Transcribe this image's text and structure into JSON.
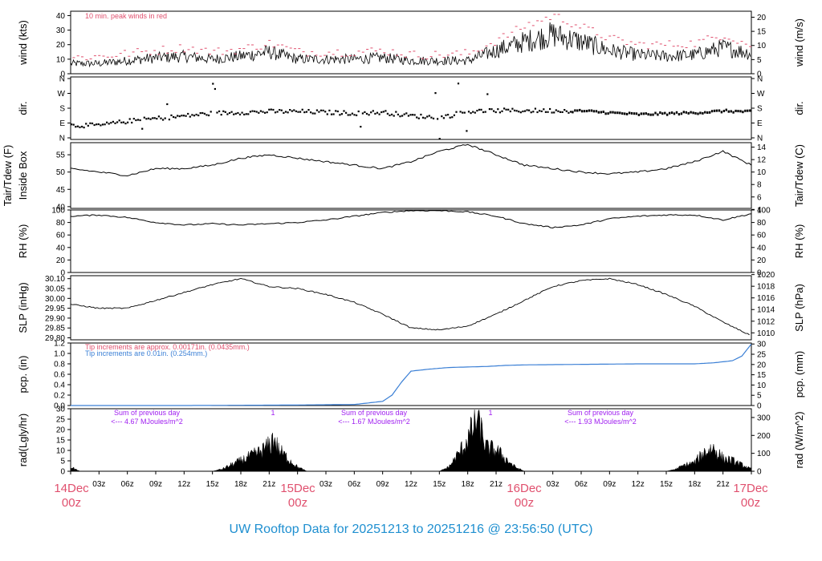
{
  "footer": "UW Rooftop Data for 20251213  to  20251216 @ 23:56:50  (UTC)",
  "colors": {
    "peak": "#e0506e",
    "blue": "#3a7fd5",
    "purple": "#a020f0",
    "date": "#e0506e",
    "footer": "#1e8fd0"
  },
  "time_axis": {
    "hour_ticks": [
      "03z",
      "06z",
      "09z",
      "12z",
      "15z",
      "18z",
      "21z"
    ],
    "day_labels": [
      {
        "day": "14Dec",
        "hour": "00z"
      },
      {
        "day": "15Dec",
        "hour": "00z"
      },
      {
        "day": "16Dec",
        "hour": "00z"
      },
      {
        "day": "17Dec",
        "hour": "00z"
      }
    ]
  },
  "panels": {
    "wind": {
      "left_label": "wind (kts)",
      "right_label": "wind (m/s)",
      "left_ticks": [
        "0",
        "10",
        "20",
        "30",
        "40"
      ],
      "right_ticks": [
        "0",
        "5",
        "10",
        "15",
        "20"
      ],
      "note": "10 min. peak winds in red"
    },
    "dir": {
      "left_label": "dir.",
      "right_label": "dir.",
      "left_ticks": [
        "N",
        "E",
        "S",
        "W",
        "N"
      ],
      "right_ticks": [
        "N",
        "E",
        "S",
        "W",
        "N"
      ]
    },
    "temp": {
      "left_label_1": "Tair/Tdew (F)",
      "left_label_2": "Inside Box",
      "right_label": "Tair/Tdew (C)",
      "left_ticks": [
        "40",
        "45",
        "50",
        "55"
      ],
      "right_ticks": [
        "4",
        "6",
        "8",
        "10",
        "12",
        "14"
      ]
    },
    "rh": {
      "left_label": "RH (%)",
      "right_label": "RH (%)",
      "left_ticks": [
        "0",
        "20",
        "40",
        "60",
        "80",
        "100"
      ],
      "right_ticks": [
        "0",
        "20",
        "40",
        "60",
        "80",
        "100"
      ]
    },
    "slp": {
      "left_label": "SLP (inHg)",
      "right_label": "SLP (hPa)",
      "left_ticks": [
        "29.80",
        "29.85",
        "29.90",
        "29.95",
        "30.00",
        "30.05",
        "30.10"
      ],
      "right_ticks": [
        "1010",
        "1012",
        "1014",
        "1016",
        "1018",
        "1020"
      ]
    },
    "pcp": {
      "left_label": "pcp. (in)",
      "right_label": "pcp. (mm)",
      "left_ticks": [
        "0.0",
        "0.2",
        "0.4",
        "0.6",
        "0.8",
        "1.0",
        "1.2"
      ],
      "right_ticks": [
        "0",
        "5",
        "10",
        "15",
        "20",
        "25",
        "30"
      ],
      "note1": "Tip increments are approx. 0.00171in. (0.0435mm.)",
      "note2": "Tip increments are 0.01in. (0.254mm.)"
    },
    "rad": {
      "left_label": "rad(Lgly/hr)",
      "right_label": "rad (W/m^2)",
      "left_ticks": [
        "0",
        "5",
        "10",
        "15",
        "20",
        "25",
        "30"
      ],
      "right_ticks": [
        "0",
        "100",
        "200",
        "300"
      ],
      "sums": [
        {
          "line1": "Sum of previous day",
          "line2": "<--- 4.67 MJoules/m^2"
        },
        {
          "line1": "Sum of previous day",
          "line2": "<--- 1.67 MJoules/m^2"
        },
        {
          "line1": "Sum of previous day",
          "line2": "<--- 1.93 MJoules/m^2"
        }
      ],
      "peak_marker": "1"
    }
  },
  "chart_data": [
    {
      "type": "line",
      "name": "wind",
      "x_unit": "hours since 14Dec 00z",
      "ylim": [
        0,
        42
      ],
      "series": [
        {
          "name": "wind speed",
          "x": [
            0,
            3,
            6,
            9,
            12,
            15,
            18,
            21,
            24,
            27,
            30,
            33,
            36,
            39,
            42,
            45,
            48,
            51,
            54,
            57,
            60,
            63,
            66,
            69,
            72
          ],
          "y": [
            7,
            7,
            9,
            11,
            12,
            10,
            12,
            15,
            10,
            10,
            10,
            11,
            9,
            9,
            9,
            16,
            22,
            27,
            22,
            16,
            13,
            12,
            13,
            18,
            14
          ]
        },
        {
          "name": "10 min. peak winds in red",
          "x": [
            0,
            3,
            6,
            9,
            12,
            15,
            18,
            21,
            24,
            27,
            30,
            33,
            36,
            39,
            42,
            45,
            48,
            51,
            54,
            57,
            60,
            63,
            66,
            69,
            72
          ],
          "y": [
            11,
            12,
            14,
            16,
            18,
            15,
            17,
            21,
            15,
            15,
            15,
            16,
            13,
            13,
            14,
            23,
            33,
            40,
            32,
            24,
            20,
            20,
            21,
            27,
            19
          ]
        }
      ]
    },
    {
      "type": "scatter",
      "name": "wind direction",
      "ylim": [
        "N",
        "E",
        "S",
        "W",
        "N"
      ],
      "series": [
        {
          "name": "direction (deg)",
          "x": [
            0,
            3,
            6,
            9,
            12,
            15,
            18,
            21,
            24,
            27,
            30,
            33,
            36,
            39,
            42,
            45,
            48,
            51,
            54,
            57,
            60,
            63,
            66,
            69,
            72
          ],
          "y": [
            95,
            95,
            120,
            135,
            150,
            165,
            170,
            175,
            175,
            170,
            165,
            170,
            150,
            140,
            175,
            180,
            180,
            180,
            180,
            170,
            160,
            165,
            170,
            180,
            175
          ]
        }
      ]
    },
    {
      "type": "line",
      "name": "Tair/Tdew Inside Box",
      "ylim": [
        40,
        58
      ],
      "series": [
        {
          "name": "Tair (F)",
          "x": [
            0,
            3,
            6,
            9,
            12,
            15,
            18,
            21,
            24,
            27,
            30,
            33,
            36,
            39,
            42,
            45,
            48,
            51,
            54,
            57,
            60,
            63,
            66,
            69,
            72
          ],
          "y": [
            51,
            50,
            49,
            51,
            51,
            52,
            54,
            55,
            54,
            53,
            52,
            51,
            53,
            56,
            58,
            55,
            52,
            51,
            50,
            49.5,
            50,
            51,
            53,
            56,
            52
          ]
        }
      ]
    },
    {
      "type": "line",
      "name": "RH",
      "ylim": [
        0,
        100
      ],
      "series": [
        {
          "name": "RH (%)",
          "x": [
            0,
            3,
            6,
            9,
            12,
            15,
            18,
            21,
            24,
            27,
            30,
            33,
            36,
            39,
            42,
            45,
            48,
            51,
            54,
            57,
            60,
            63,
            66,
            69,
            72
          ],
          "y": [
            90,
            92,
            88,
            80,
            76,
            78,
            76,
            78,
            80,
            84,
            90,
            96,
            99,
            99,
            97,
            90,
            78,
            72,
            76,
            86,
            90,
            92,
            92,
            84,
            94
          ]
        }
      ]
    },
    {
      "type": "line",
      "name": "SLP",
      "ylim": [
        29.8,
        30.12
      ],
      "series": [
        {
          "name": "SLP (inHg)",
          "x": [
            0,
            3,
            6,
            9,
            12,
            15,
            18,
            21,
            24,
            27,
            30,
            33,
            36,
            39,
            42,
            45,
            48,
            51,
            54,
            57,
            60,
            63,
            66,
            69,
            72
          ],
          "y": [
            29.97,
            29.95,
            29.95,
            29.99,
            30.03,
            30.07,
            30.1,
            30.06,
            30.05,
            30.02,
            29.98,
            29.92,
            29.85,
            29.84,
            29.86,
            29.92,
            29.99,
            30.06,
            30.09,
            30.1,
            30.07,
            30.02,
            29.96,
            29.88,
            29.81
          ]
        }
      ]
    },
    {
      "type": "area",
      "name": "pcp",
      "ylim": [
        0,
        1.2
      ],
      "series": [
        {
          "name": "accumulated (in)",
          "x": [
            0,
            12,
            24,
            30,
            33,
            34,
            35,
            36,
            38,
            40,
            44,
            46,
            48,
            54,
            60,
            66,
            68,
            70,
            71,
            72
          ],
          "y": [
            0,
            0,
            0.01,
            0.02,
            0.08,
            0.2,
            0.45,
            0.66,
            0.7,
            0.73,
            0.75,
            0.77,
            0.78,
            0.79,
            0.8,
            0.8,
            0.82,
            0.86,
            0.95,
            1.18
          ]
        }
      ]
    },
    {
      "type": "area",
      "name": "rad",
      "ylim": [
        0,
        30
      ],
      "series": [
        {
          "name": "radiation (Lgly/hr)",
          "x": [
            0,
            0.5,
            1,
            15,
            16,
            17,
            18,
            19,
            20,
            21,
            21.5,
            22,
            23,
            24,
            25,
            39,
            40,
            41,
            42,
            43,
            44,
            45,
            46,
            47,
            48,
            63,
            64,
            65,
            66,
            67,
            68,
            69,
            70,
            71,
            72
          ],
          "y": [
            2,
            1,
            0,
            0,
            1,
            3,
            5,
            7,
            9,
            12,
            16,
            10,
            6,
            2,
            0,
            0,
            2,
            8,
            15,
            25,
            11,
            10,
            6,
            2,
            0,
            0,
            1,
            3,
            4,
            9,
            11,
            6,
            5,
            3,
            1
          ]
        }
      ]
    }
  ]
}
